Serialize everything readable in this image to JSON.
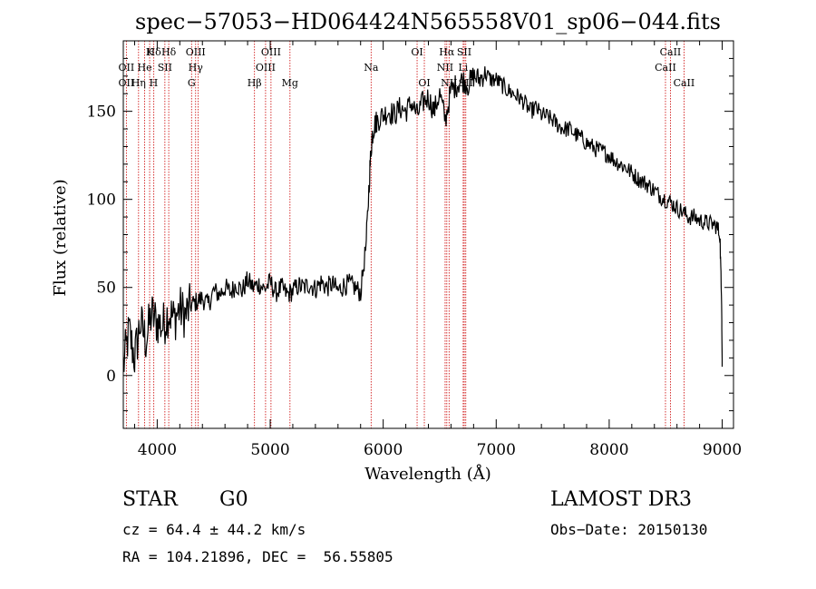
{
  "chart_data": {
    "type": "line",
    "title": "spec−57053−HD064424N565558V01_sp06−044.fits",
    "xlabel": "Wavelength (Å)",
    "ylabel": "Flux (relative)",
    "xlim": [
      3700,
      9100
    ],
    "ylim": [
      -30,
      190
    ],
    "xticks": [
      4000,
      5000,
      6000,
      7000,
      8000,
      9000
    ],
    "yticks": [
      0,
      50,
      100,
      150
    ],
    "grid": false,
    "series": [
      {
        "color": "#000000",
        "x": [
          3700,
          3750,
          3800,
          3850,
          3900,
          3950,
          4000,
          4050,
          4100,
          4150,
          4200,
          4250,
          4300,
          4350,
          4400,
          4450,
          4500,
          4550,
          4600,
          4650,
          4700,
          4750,
          4800,
          4850,
          4900,
          4950,
          5000,
          5050,
          5100,
          5150,
          5200,
          5250,
          5300,
          5350,
          5400,
          5450,
          5500,
          5550,
          5600,
          5650,
          5700,
          5750,
          5800,
          5850,
          5880,
          5900,
          5920,
          5950,
          6000,
          6050,
          6100,
          6150,
          6200,
          6250,
          6300,
          6350,
          6400,
          6450,
          6500,
          6550,
          6600,
          6650,
          6700,
          6750,
          6800,
          6850,
          6900,
          6950,
          7000,
          7050,
          7100,
          7150,
          7200,
          7250,
          7300,
          7350,
          7400,
          7450,
          7500,
          7550,
          7600,
          7650,
          7700,
          7750,
          7800,
          7850,
          7900,
          7950,
          8000,
          8050,
          8100,
          8150,
          8200,
          8250,
          8300,
          8350,
          8400,
          8450,
          8500,
          8550,
          8600,
          8650,
          8700,
          8750,
          8800,
          8850,
          8900,
          8950,
          8980,
          8995,
          9000
        ],
        "values": [
          5,
          25,
          10,
          30,
          20,
          35,
          30,
          28,
          36,
          32,
          38,
          34,
          40,
          42,
          44,
          40,
          48,
          46,
          50,
          47,
          52,
          48,
          54,
          50,
          52,
          49,
          53,
          47,
          50,
          46,
          48,
          51,
          50,
          52,
          49,
          53,
          50,
          52,
          48,
          51,
          52,
          50,
          47,
          75,
          115,
          135,
          142,
          145,
          148,
          150,
          148,
          152,
          150,
          155,
          148,
          155,
          158,
          150,
          160,
          145,
          162,
          165,
          168,
          165,
          170,
          168,
          172,
          168,
          168,
          165,
          162,
          160,
          158,
          155,
          150,
          152,
          148,
          147,
          145,
          142,
          140,
          140,
          137,
          135,
          132,
          130,
          128,
          127,
          125,
          122,
          120,
          118,
          115,
          112,
          110,
          108,
          105,
          102,
          100,
          98,
          95,
          93,
          90,
          90,
          88,
          87,
          86,
          85,
          80,
          40,
          5
        ]
      }
    ],
    "line_labels": [
      {
        "text": "Hδ",
        "x": 3970,
        "row": 0
      },
      {
        "text": "K",
        "x": 3933,
        "row": 0
      },
      {
        "text": "Hδ",
        "x": 4102,
        "row": 0
      },
      {
        "text": "OIII",
        "x": 4340,
        "row": 0
      },
      {
        "text": "OIII",
        "x": 5007,
        "row": 0
      },
      {
        "text": "OI",
        "x": 6300,
        "row": 0
      },
      {
        "text": "Hα",
        "x": 6563,
        "row": 0
      },
      {
        "text": "SII",
        "x": 6717,
        "row": 0
      },
      {
        "text": "CaII",
        "x": 8542,
        "row": 0
      },
      {
        "text": "OII",
        "x": 3727,
        "row": 1
      },
      {
        "text": "He",
        "x": 3889,
        "row": 1
      },
      {
        "text": "SII",
        "x": 4068,
        "row": 1
      },
      {
        "text": "Hγ",
        "x": 4340,
        "row": 1
      },
      {
        "text": "OIII",
        "x": 4959,
        "row": 1
      },
      {
        "text": "Na",
        "x": 5893,
        "row": 1
      },
      {
        "text": "NII",
        "x": 6548,
        "row": 1
      },
      {
        "text": "Li",
        "x": 6708,
        "row": 1
      },
      {
        "text": "CaII",
        "x": 8498,
        "row": 1
      },
      {
        "text": "OII",
        "x": 3727,
        "row": 2
      },
      {
        "text": "Hη",
        "x": 3835,
        "row": 2
      },
      {
        "text": "H",
        "x": 3968,
        "row": 2
      },
      {
        "text": "G",
        "x": 4304,
        "row": 2
      },
      {
        "text": "Hβ",
        "x": 4861,
        "row": 2
      },
      {
        "text": "Mg",
        "x": 5175,
        "row": 2
      },
      {
        "text": "OI",
        "x": 6364,
        "row": 2
      },
      {
        "text": "NII",
        "x": 6583,
        "row": 2
      },
      {
        "text": "SII",
        "x": 6731,
        "row": 2
      },
      {
        "text": "CaII",
        "x": 8662,
        "row": 2
      }
    ],
    "marker_lines_x": [
      3727,
      3835,
      3889,
      3933,
      3970,
      4068,
      4102,
      4304,
      4340,
      4363,
      4861,
      4959,
      5007,
      5175,
      5893,
      6300,
      6364,
      6548,
      6563,
      6583,
      6708,
      6717,
      6731,
      8498,
      8542,
      8662
    ],
    "marker_color": "#cc0000"
  },
  "info": {
    "object_class": "STAR",
    "subclass": "G0",
    "survey": "LAMOST DR3",
    "cz": "cz = 64.4 ± 44.2 km/s",
    "obs_date": "Obs−Date: 20150130",
    "coords": "RA = 104.21896, DEC =  56.55805"
  }
}
